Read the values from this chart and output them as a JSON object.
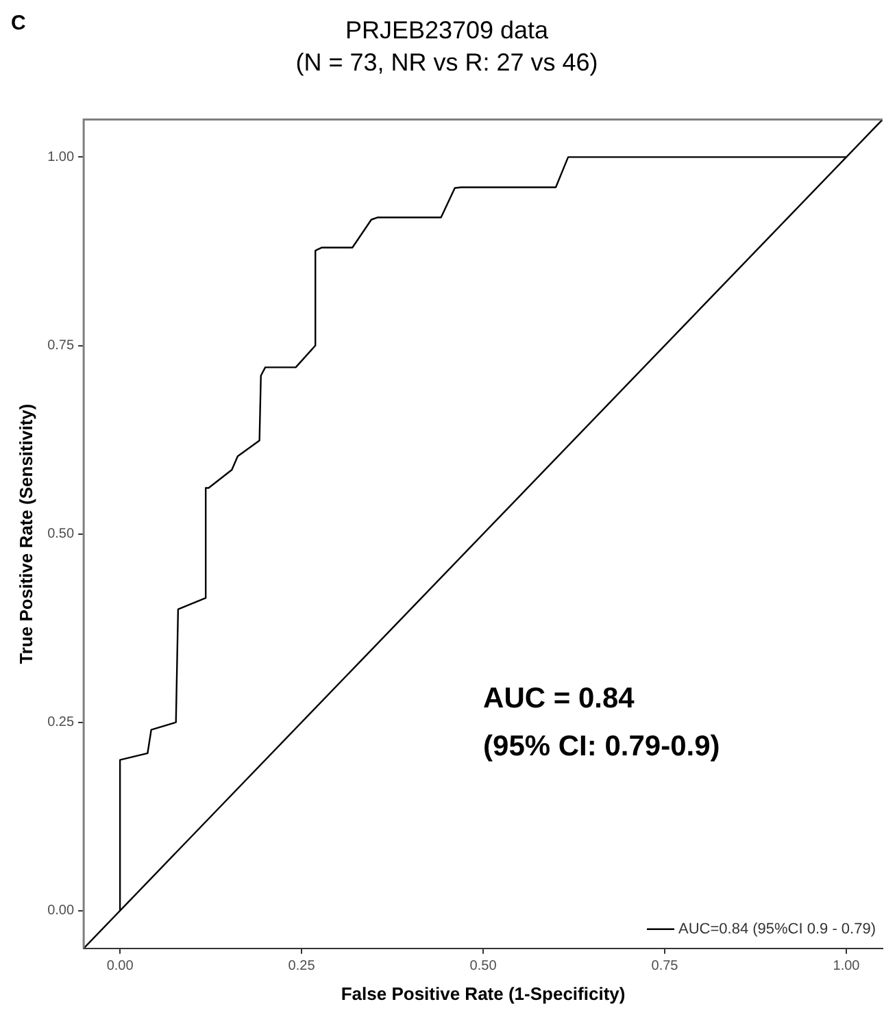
{
  "chart_data": {
    "type": "line",
    "title": "PRJEB23709 data",
    "subtitle": "(N = 73, NR vs R: 27 vs 46)",
    "xlabel": "False Positive Rate (1-Specificity)",
    "ylabel": "True Positive Rate (Sensitivity)",
    "annotations": [
      "C",
      "AUC = 0.84",
      "(95% CI: 0.79-0.9)"
    ],
    "xlim": [
      -0.05,
      1.05
    ],
    "ylim": [
      -0.05,
      1.05
    ],
    "xticks": [
      {
        "value": 0,
        "label": "0.00"
      },
      {
        "value": 0.25,
        "label": "0.25"
      },
      {
        "value": 0.5,
        "label": "0.50"
      },
      {
        "value": 0.75,
        "label": "0.75"
      },
      {
        "value": 1,
        "label": "1.00"
      }
    ],
    "yticks": [
      {
        "value": 0,
        "label": "0.00"
      },
      {
        "value": 0.25,
        "label": "0.25"
      },
      {
        "value": 0.5,
        "label": "0.50"
      },
      {
        "value": 0.75,
        "label": "0.75"
      },
      {
        "value": 1,
        "label": "1.00"
      }
    ],
    "grid": false,
    "legend": "bottom right",
    "marker": "none",
    "line_style": "solid",
    "series": [
      {
        "name": "AUC=0.84 (95%CI 0.9 - 0.79)",
        "color": "#000000",
        "x": [
          0,
          0,
          0.038,
          0.043,
          0.077,
          0.08,
          0.118,
          0.118,
          0.122,
          0.154,
          0.162,
          0.192,
          0.194,
          0.2,
          0.242,
          0.269,
          0.269,
          0.278,
          0.32,
          0.346,
          0.355,
          0.442,
          0.461,
          0.47,
          0.6,
          0.617,
          1
        ],
        "values": [
          0,
          0.2,
          0.209,
          0.24,
          0.25,
          0.4,
          0.415,
          0.561,
          0.561,
          0.585,
          0.603,
          0.624,
          0.71,
          0.721,
          0.721,
          0.75,
          0.876,
          0.88,
          0.88,
          0.917,
          0.92,
          0.92,
          0.959,
          0.96,
          0.96,
          1,
          1
        ]
      },
      {
        "color": "#000000",
        "x": [
          -0.05,
          1.05
        ],
        "values": [
          -0.05,
          1.05
        ]
      }
    ]
  }
}
